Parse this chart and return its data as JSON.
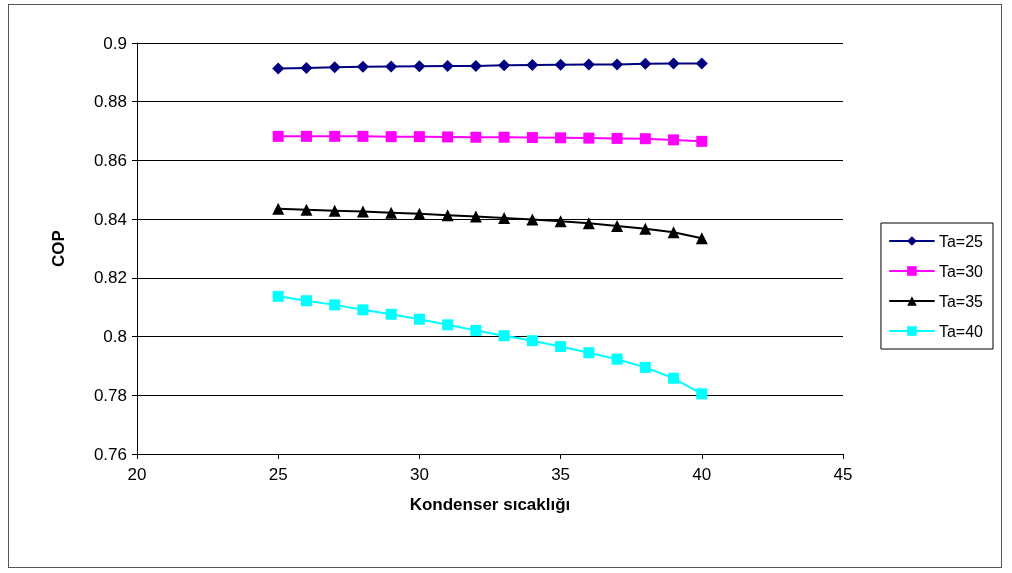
{
  "chart_data": {
    "type": "line",
    "xlabel": "Kondenser sıcaklığı",
    "ylabel": "COP",
    "x": [
      25,
      26,
      27,
      28,
      29,
      30,
      31,
      32,
      33,
      34,
      35,
      36,
      37,
      38,
      39,
      40
    ],
    "xlim": [
      20,
      45
    ],
    "xticks": [
      20,
      25,
      30,
      35,
      40,
      45
    ],
    "ylim": [
      0.76,
      0.9
    ],
    "yticks": [
      0.76,
      0.78,
      0.8,
      0.82,
      0.84,
      0.86,
      0.88,
      0.9
    ],
    "grid": "y",
    "legend": "right",
    "line_style": "solid",
    "series": [
      {
        "name": "Ta=25",
        "color": "#000080",
        "marker": "diamond",
        "values": [
          0.8913,
          0.8915,
          0.8917,
          0.8919,
          0.892,
          0.8921,
          0.8922,
          0.8922,
          0.8924,
          0.8925,
          0.8926,
          0.8927,
          0.8927,
          0.8929,
          0.893,
          0.893
        ]
      },
      {
        "name": "Ta=30",
        "color": "#ff00ff",
        "marker": "square",
        "values": [
          0.8682,
          0.8682,
          0.8682,
          0.8682,
          0.8681,
          0.8681,
          0.868,
          0.8679,
          0.8679,
          0.8678,
          0.8677,
          0.8676,
          0.8675,
          0.8674,
          0.867,
          0.8665
        ]
      },
      {
        "name": "Ta=35",
        "color": "#000000",
        "marker": "triangle",
        "values": [
          0.8435,
          0.8432,
          0.8429,
          0.8426,
          0.8422,
          0.8418,
          0.8413,
          0.8409,
          0.8404,
          0.8399,
          0.8393,
          0.8386,
          0.8377,
          0.8367,
          0.8355,
          0.8335
        ]
      },
      {
        "name": "Ta=40",
        "color": "#00ffff",
        "marker": "square",
        "values": [
          0.8137,
          0.8122,
          0.8108,
          0.8091,
          0.8076,
          0.8059,
          0.804,
          0.8021,
          0.8003,
          0.7986,
          0.7966,
          0.7945,
          0.7923,
          0.7895,
          0.7858,
          0.7805
        ]
      }
    ]
  }
}
